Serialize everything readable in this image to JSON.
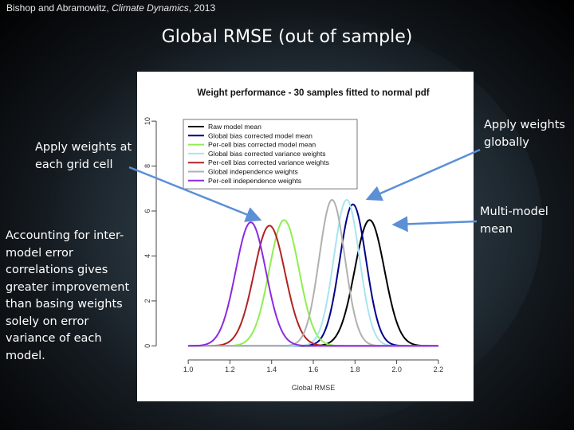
{
  "citation": {
    "prefix": "Bishop and Abramowitz, ",
    "journal": "Climate Dynamics",
    "suffix": ", 2013"
  },
  "slide_title": "Global RMSE (out of sample)",
  "notes": {
    "left_top": "Apply weights at each grid cell",
    "left_bottom": "Accounting for inter-model error correlations gives greater improvement than basing weights solely on error variance of each model.",
    "right_top": "Apply weights globally",
    "right_bottom": "Multi-model mean"
  },
  "colors": {
    "arrow": "#5b8fd6",
    "text": "#ffffff"
  },
  "chart_data": {
    "type": "line",
    "title": "Weight performance - 30 samples fitted to normal pdf",
    "xlabel": "Global RMSE",
    "ylabel": "",
    "xlim": [
      0.9,
      2.3
    ],
    "ylim": [
      -0.2,
      10.5
    ],
    "xticks": [
      1.0,
      1.2,
      1.4,
      1.6,
      1.8,
      2.0,
      2.2
    ],
    "xtick_labels": [
      "1.0",
      "1.2",
      "1.4",
      "1.6",
      "1.8",
      "2.0",
      "2.2"
    ],
    "yticks": [
      0,
      2,
      4,
      6,
      8,
      10
    ],
    "ytick_labels": [
      "0",
      "2",
      "4",
      "6",
      "8",
      "10"
    ],
    "grid": false,
    "legend_position": "top-left",
    "series": [
      {
        "name": "Raw model mean",
        "color": "#000000",
        "mean": 1.87,
        "peak": 5.6
      },
      {
        "name": "Global bias corrected model mean",
        "color": "#00008b",
        "mean": 1.79,
        "peak": 6.3
      },
      {
        "name": "Per-cell bias corrected model mean",
        "color": "#90ee50",
        "mean": 1.46,
        "peak": 5.6
      },
      {
        "name": "Global bias corrected variance weights",
        "color": "#a8e4f0",
        "mean": 1.76,
        "peak": 6.5
      },
      {
        "name": "Per-cell bias corrected variance weights",
        "color": "#b22222",
        "mean": 1.39,
        "peak": 5.35
      },
      {
        "name": "Global independence weights",
        "color": "#b0b0b0",
        "mean": 1.69,
        "peak": 6.5
      },
      {
        "name": "Per-cell independence weights",
        "color": "#8a2be2",
        "mean": 1.3,
        "peak": 5.5
      }
    ]
  }
}
